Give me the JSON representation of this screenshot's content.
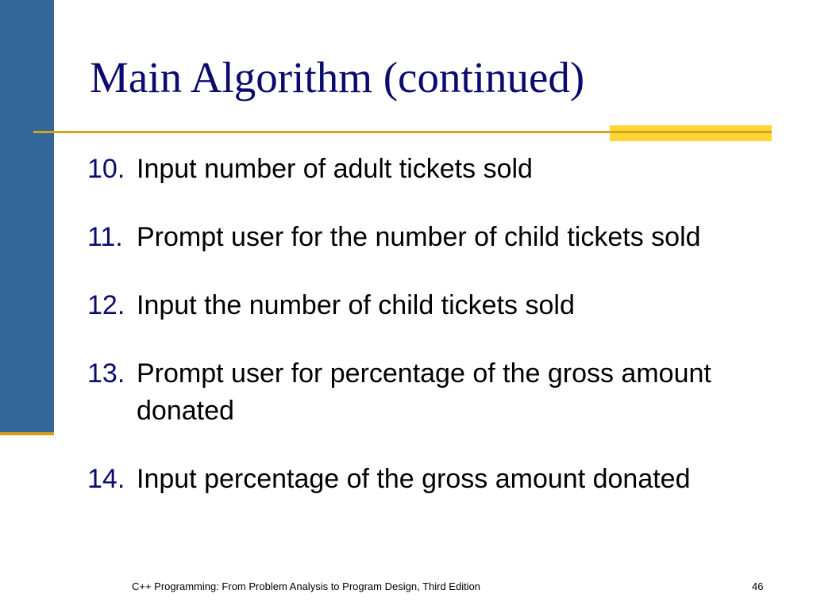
{
  "slide": {
    "title": "Main Algorithm (continued)",
    "items": [
      {
        "number": "10.",
        "text": "Input number of adult tickets sold"
      },
      {
        "number": "11.",
        "text": "Prompt user for the number of child tickets sold"
      },
      {
        "number": "12.",
        "text": "Input the number of child tickets sold"
      },
      {
        "number": "13.",
        "text": "Prompt user for percentage of the gross amount donated"
      },
      {
        "number": "14.",
        "text": "Input percentage of the gross amount donated"
      }
    ],
    "footer": "C++ Programming: From Problem Analysis to Program Design, Third Edition",
    "page_number": "46"
  },
  "colors": {
    "sidebar": "#336699",
    "accent_gold": "#d4a421",
    "accent_yellow": "#ffd633",
    "title": "#0b0b6e"
  }
}
